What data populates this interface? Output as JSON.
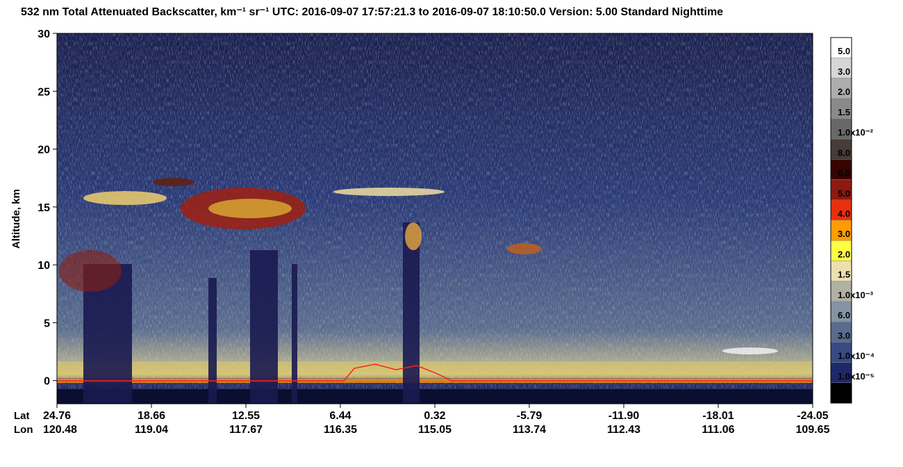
{
  "chart_data": {
    "type": "curtain",
    "title": "532 nm Total Attenuated Backscatter, km⁻¹ sr⁻¹    UTC:  2016-09-07 17:57:21.3  to  2016-09-07 18:10:50.0    Version: 5.00  Standard  Nighttime",
    "ylabel": "Altitude, km",
    "ylim": [
      -2,
      30
    ],
    "yticks": [
      0,
      5,
      10,
      15,
      20,
      25,
      30
    ],
    "lat_label": "Lat",
    "lon_label": "Lon",
    "lat": [
      "24.76",
      "18.66",
      "12.55",
      "6.44",
      "0.32",
      "-5.79",
      "-11.90",
      "-18.01",
      "-24.05"
    ],
    "lon": [
      "120.48",
      "119.04",
      "117.67",
      "116.35",
      "115.05",
      "113.74",
      "112.43",
      "111.06",
      "109.65"
    ],
    "colorbar": {
      "colors": [
        "#ffffff",
        "#d6d6d6",
        "#adadad",
        "#8a8a8a",
        "#686868",
        "#463c38",
        "#360500",
        "#8c1a10",
        "#e8300c",
        "#ff9c00",
        "#ffff44",
        "#ece0b0",
        "#b0b0a4",
        "#8494a4",
        "#5a6c8c",
        "#384a82",
        "#1e2868",
        "#000000"
      ],
      "labels": [
        "5.0",
        "3.0",
        "2.0",
        "1.5",
        "1.0x10⁻²",
        "8.0",
        "6.0",
        "5.0",
        "4.0",
        "3.0",
        "2.0",
        "1.5",
        "1.0x10⁻³",
        "6.0",
        "3.0",
        "1.0x10⁻⁴",
        "1.0x10⁻⁵",
        null
      ]
    }
  }
}
